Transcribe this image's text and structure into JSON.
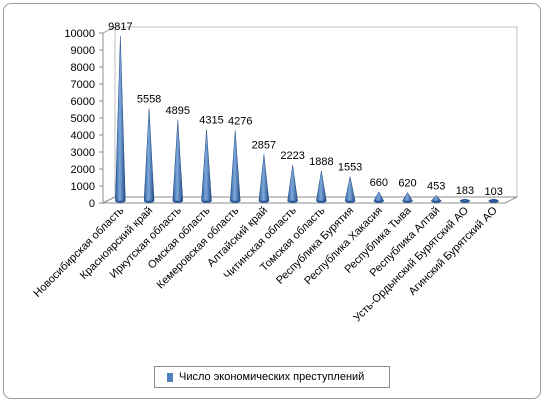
{
  "chart_data": {
    "type": "bar",
    "shape": "cone",
    "categories": [
      "Новосибирская область",
      "Красноярский край",
      "Иркутская область",
      "Омская область",
      "Кемеровская область",
      "Алтайский край",
      "Читинская область",
      "Томская область",
      "Республика Бурятия",
      "Республика Хакасия",
      "Республика Тыва",
      "Республика Алтай",
      "Усть-Ордынский Бурятский АО",
      "Агинский Бурятский АО"
    ],
    "series": [
      {
        "name": "Число экономических преступлений",
        "values": [
          9817,
          5558,
          4895,
          4315,
          4276,
          2857,
          2223,
          1888,
          1553,
          660,
          620,
          453,
          183,
          103
        ],
        "color": "#4f81bd"
      }
    ],
    "yticks": [
      0,
      1000,
      2000,
      3000,
      4000,
      5000,
      6000,
      7000,
      8000,
      9000,
      10000
    ],
    "ylim": [
      0,
      10000
    ],
    "grid": false,
    "legend_position": "bottom"
  }
}
